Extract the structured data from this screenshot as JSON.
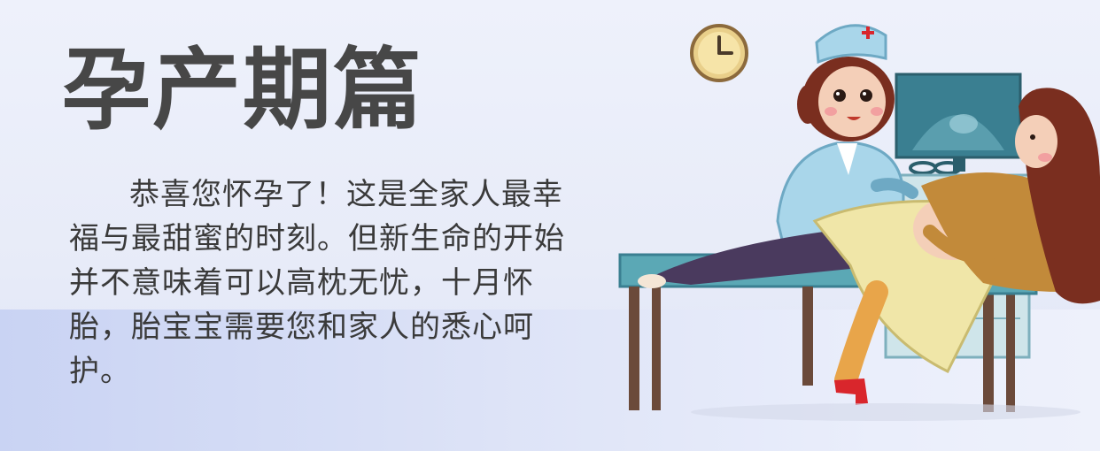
{
  "header": {
    "title": "孕产期篇"
  },
  "intro": {
    "paragraph": "恭喜您怀孕了！这是全家人最幸福与最甜蜜的时刻。但新生命的开始并不意味着可以高枕无忧，十月怀胎，胎宝宝需要您和家人的悉心呵护。"
  },
  "illustration": {
    "scene": "nurse-ultrasound-pregnant-woman",
    "colors": {
      "background": "#eef1fb",
      "band": "#c9d3f3",
      "title": "#474747",
      "bed": "#5ba8b5",
      "nurse_uniform": "#a9d6ea",
      "hair": "#7a2e1f",
      "sweater": "#c28a3a",
      "skirt": "#f0e6a8",
      "pants": "#4a3a5e",
      "monitor": "#3a7f91",
      "clock": "#e9cf8a",
      "shoe": "#d9262c"
    }
  }
}
